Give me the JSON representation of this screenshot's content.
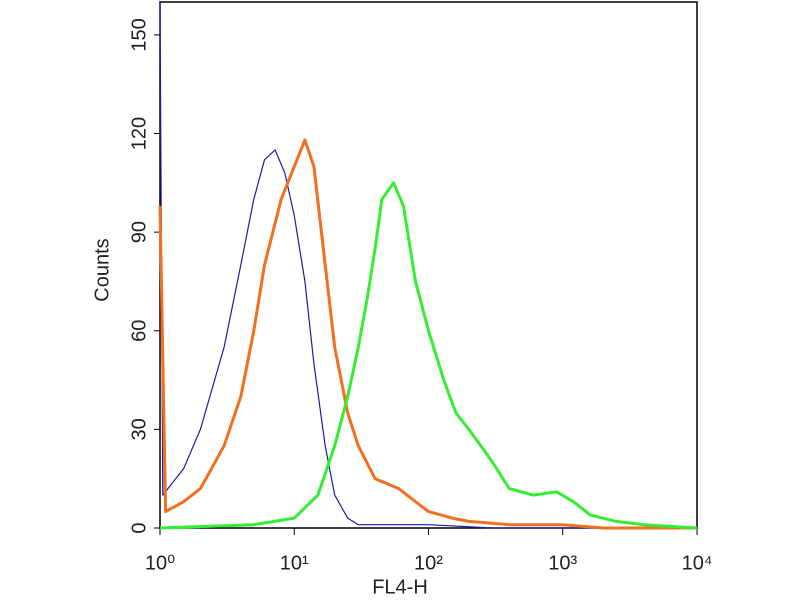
{
  "chart_data": {
    "type": "line",
    "xlabel": "FL4-H",
    "ylabel": "Counts",
    "xscale": "log",
    "xlim": [
      1,
      10000
    ],
    "xticks": [
      {
        "value": 1,
        "label": "10⁰"
      },
      {
        "value": 10,
        "label": "10¹"
      },
      {
        "value": 100,
        "label": "10²"
      },
      {
        "value": 1000,
        "label": "10³"
      },
      {
        "value": 10000,
        "label": "10⁴"
      }
    ],
    "ylim": [
      0,
      160
    ],
    "yticks": [
      0,
      30,
      60,
      90,
      120,
      150
    ],
    "series": [
      {
        "color": "#1c1ca8",
        "width": 1.2,
        "x": [
          1,
          1.05,
          1.5,
          2,
          3,
          4,
          5,
          6,
          7.2,
          8.5,
          10,
          12,
          14,
          17,
          20,
          25,
          30,
          50,
          100,
          300,
          10000
        ],
        "values": [
          160,
          10,
          18,
          30,
          55,
          80,
          100,
          112,
          115,
          108,
          95,
          75,
          50,
          25,
          10,
          3,
          1,
          1,
          1,
          0,
          0
        ]
      },
      {
        "color": "#f07020",
        "width": 3,
        "x": [
          1,
          1.1,
          1.5,
          2,
          3,
          4,
          5,
          6,
          8,
          10,
          12,
          14,
          17,
          20,
          25,
          30,
          40,
          60,
          80,
          100,
          150,
          200,
          400,
          1000,
          2000,
          10000
        ],
        "values": [
          98,
          5,
          8,
          12,
          25,
          40,
          60,
          80,
          100,
          110,
          118,
          110,
          80,
          55,
          35,
          25,
          15,
          12,
          8,
          5,
          3,
          2,
          1,
          1,
          0,
          0
        ]
      },
      {
        "color": "#33ee33",
        "width": 3,
        "x": [
          1,
          5,
          10,
          15,
          20,
          25,
          30,
          35,
          40,
          45,
          55,
          65,
          80,
          100,
          130,
          160,
          200,
          300,
          400,
          600,
          900,
          1200,
          1600,
          2500,
          4000,
          10000
        ],
        "values": [
          0,
          1,
          3,
          10,
          25,
          40,
          55,
          70,
          85,
          100,
          105,
          98,
          75,
          60,
          45,
          35,
          30,
          20,
          12,
          10,
          11,
          8,
          4,
          2,
          1,
          0
        ]
      }
    ]
  }
}
